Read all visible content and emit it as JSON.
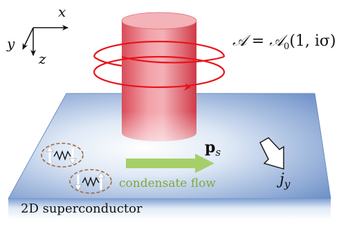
{
  "axes": {
    "x": "x",
    "y": "y",
    "z": "z"
  },
  "equation": {
    "lhs": "𝒜",
    "eq": " = ",
    "rhs_sym": "𝒜",
    "rhs_sub": "0",
    "rhs_args": "(1, iσ)"
  },
  "momentum": {
    "base": "p",
    "sub": "s"
  },
  "current": {
    "base": "j",
    "sub": "y"
  },
  "flow_label": "condensate flow",
  "base_label": "2D superconductor",
  "colors": {
    "cylinder": "#e0606a",
    "ring": "#e8141b",
    "plane": "#7f9fcf",
    "flow_arrow": "#a6cf6a",
    "flow_text": "#7ea83b",
    "pair_circle": "#a0683b"
  }
}
